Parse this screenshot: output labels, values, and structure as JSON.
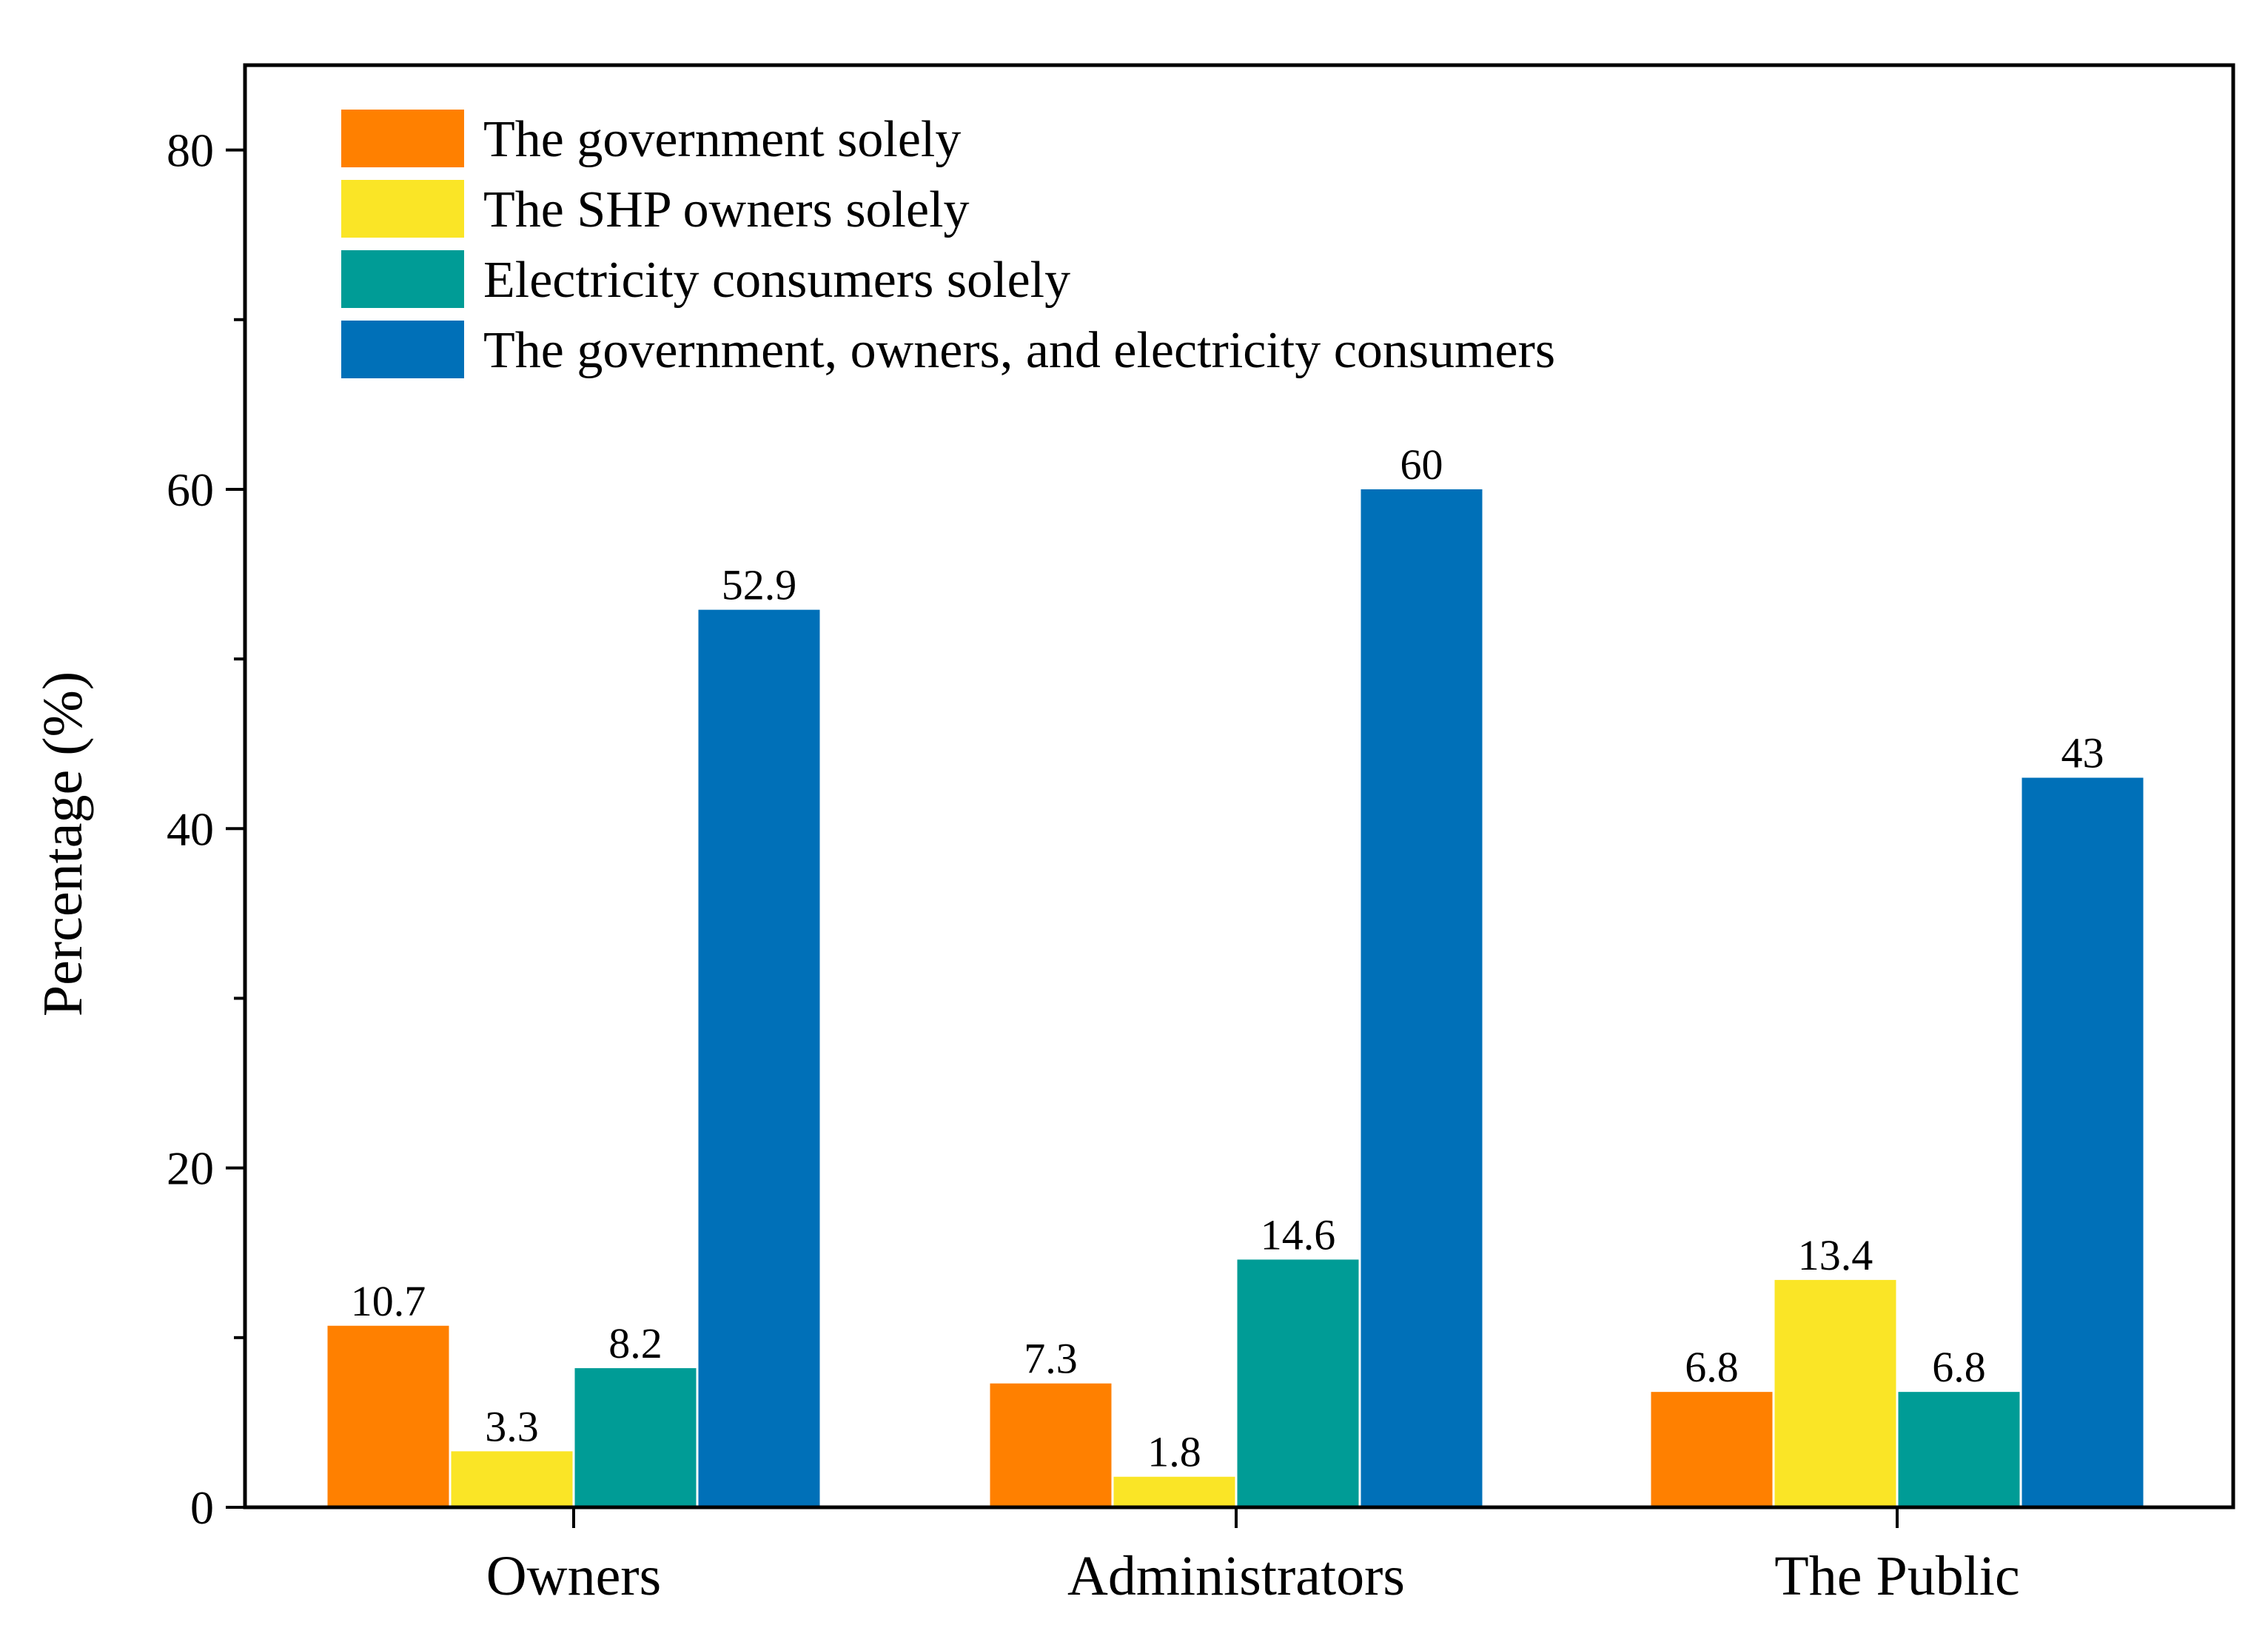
{
  "chart_data": {
    "type": "bar",
    "title": "",
    "xlabel": "",
    "ylabel": "Percentage (%)",
    "ylim": [
      0,
      85
    ],
    "yticks": [
      0,
      20,
      40,
      60,
      80
    ],
    "legend_position": "top-left",
    "grid": false,
    "categories": [
      "Owners",
      "Administrators",
      "The Public"
    ],
    "series": [
      {
        "name": "The government solely",
        "color": "#FF8000",
        "values": [
          10.7,
          7.3,
          6.8
        ],
        "labels": [
          "10.7",
          "7.3",
          "6.8"
        ]
      },
      {
        "name": "The SHP owners solely",
        "color": "#FAE526",
        "values": [
          3.3,
          1.8,
          13.4
        ],
        "labels": [
          "3.3",
          "1.8",
          "13.4"
        ]
      },
      {
        "name": "Electricity consumers solely",
        "color": "#009C96",
        "values": [
          8.2,
          14.6,
          6.8
        ],
        "labels": [
          "8.2",
          "14.6",
          "6.8"
        ]
      },
      {
        "name": "The government, owners, and electricity consumers",
        "color": "#0070B8",
        "values": [
          52.9,
          60,
          43
        ],
        "labels": [
          "52.9",
          "60",
          "43"
        ]
      }
    ]
  }
}
